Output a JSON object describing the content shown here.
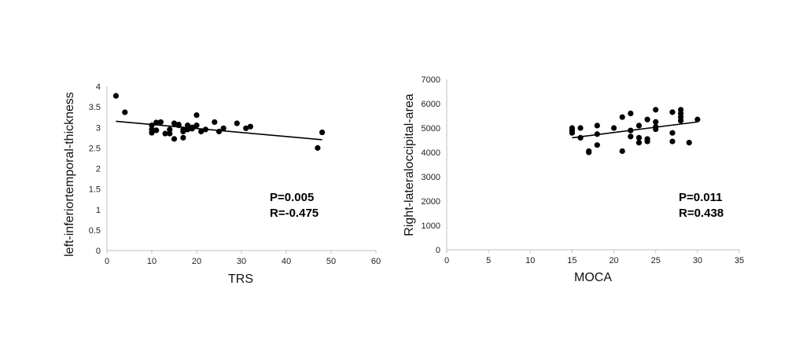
{
  "chart_data": [
    {
      "type": "scatter",
      "xlabel": "TRS",
      "ylabel": "left-inferiortemporal-thickness",
      "xlim": [
        0,
        60
      ],
      "ylim": [
        0,
        4
      ],
      "xticks": [
        "0",
        "10",
        "20",
        "30",
        "40",
        "50",
        "60"
      ],
      "yticks": [
        "0",
        "0.5",
        "1",
        "1.5",
        "2",
        "2.5",
        "3",
        "3.5",
        "4"
      ],
      "stats": {
        "p": "P=0.005",
        "r": "R=-0.475"
      },
      "trendline": {
        "x": [
          2,
          48
        ],
        "y": [
          3.15,
          2.7
        ]
      },
      "points": [
        [
          2,
          3.77
        ],
        [
          4,
          3.37
        ],
        [
          10,
          3.05
        ],
        [
          10,
          2.95
        ],
        [
          10,
          2.87
        ],
        [
          11,
          3.12
        ],
        [
          11,
          2.93
        ],
        [
          12,
          3.13
        ],
        [
          13,
          2.85
        ],
        [
          14,
          2.95
        ],
        [
          14,
          2.85
        ],
        [
          15,
          3.1
        ],
        [
          15,
          2.72
        ],
        [
          16,
          3.07
        ],
        [
          16,
          3.05
        ],
        [
          17,
          2.9
        ],
        [
          17,
          2.75
        ],
        [
          17,
          2.95
        ],
        [
          18,
          3.05
        ],
        [
          18,
          2.95
        ],
        [
          19,
          2.97
        ],
        [
          19,
          3.0
        ],
        [
          20,
          3.3
        ],
        [
          20,
          3.05
        ],
        [
          21,
          2.9
        ],
        [
          22,
          2.95
        ],
        [
          24,
          3.13
        ],
        [
          25,
          2.9
        ],
        [
          26,
          2.98
        ],
        [
          29,
          3.1
        ],
        [
          31,
          2.98
        ],
        [
          32,
          3.02
        ],
        [
          47,
          2.5
        ],
        [
          48,
          2.88
        ]
      ]
    },
    {
      "type": "scatter",
      "xlabel": "MOCA",
      "ylabel": "Right-lateraloccipital-area",
      "xlim": [
        0,
        35
      ],
      "ylim": [
        0,
        7000
      ],
      "xticks": [
        "0",
        "5",
        "10",
        "15",
        "20",
        "25",
        "30",
        "35"
      ],
      "yticks": [
        "0",
        "1000",
        "2000",
        "3000",
        "4000",
        "5000",
        "6000",
        "7000"
      ],
      "stats": {
        "p": "P=0.011",
        "r": "R=0.438"
      },
      "trendline": {
        "x": [
          15,
          30
        ],
        "y": [
          4600,
          5250
        ]
      },
      "points": [
        [
          15,
          5000
        ],
        [
          15,
          4900
        ],
        [
          15,
          4800
        ],
        [
          16,
          5000
        ],
        [
          16,
          4600
        ],
        [
          17,
          4050
        ],
        [
          17,
          4000
        ],
        [
          18,
          5100
        ],
        [
          18,
          4750
        ],
        [
          18,
          4300
        ],
        [
          20,
          5000
        ],
        [
          21,
          5450
        ],
        [
          21,
          4050
        ],
        [
          22,
          5600
        ],
        [
          22,
          4900
        ],
        [
          22,
          4650
        ],
        [
          23,
          5100
        ],
        [
          23,
          4600
        ],
        [
          23,
          4400
        ],
        [
          24,
          5350
        ],
        [
          24,
          4550
        ],
        [
          24,
          4450
        ],
        [
          25,
          5750
        ],
        [
          25,
          5250
        ],
        [
          25,
          5050
        ],
        [
          25,
          4950
        ],
        [
          27,
          5650
        ],
        [
          27,
          4800
        ],
        [
          27,
          4450
        ],
        [
          28,
          5750
        ],
        [
          28,
          5600
        ],
        [
          28,
          5450
        ],
        [
          28,
          5300
        ],
        [
          29,
          4400
        ],
        [
          30,
          5350
        ]
      ]
    }
  ]
}
